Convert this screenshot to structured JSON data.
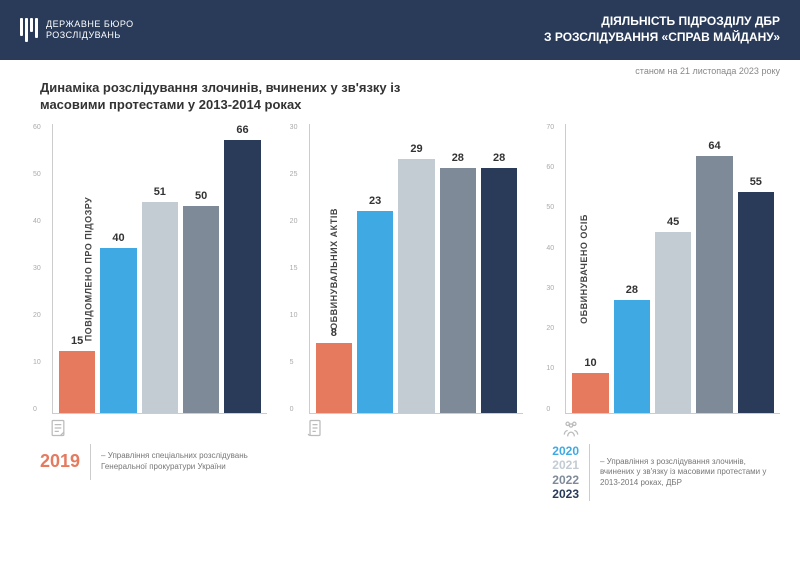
{
  "header": {
    "org_line1": "ДЕРЖАВНЕ БЮРО",
    "org_line2": "РОЗСЛІДУВАНЬ",
    "title_line1": "ДІЯЛЬНІСТЬ ПІДРОЗДІЛУ ДБР",
    "title_line2": "З РОЗСЛІДУВАННЯ «СПРАВ МАЙДАНУ»",
    "bg_color": "#2a3b5a"
  },
  "date_label": "станом на 21 листопада 2023 року",
  "main_title": "Динаміка розслідування злочинів, вчинених у зв'язку із масовими протестами у 2013-2014 роках",
  "colors": {
    "y2019": "#e57a5f",
    "y2020": "#3fa9e4",
    "y2021": "#c3cbd3",
    "y2022": "#7f8a99",
    "y2023": "#2a3b5a"
  },
  "charts": [
    {
      "axis_label": "ПОВІДОМЛЕНО ПРО ПІДОЗРУ",
      "ymax": 70,
      "yticks": [
        "0",
        "10",
        "20",
        "30",
        "40",
        "50",
        "60"
      ],
      "bars": [
        {
          "v": 15,
          "c": "y2019"
        },
        {
          "v": 40,
          "c": "y2020"
        },
        {
          "v": 51,
          "c": "y2021"
        },
        {
          "v": 50,
          "c": "y2022"
        },
        {
          "v": 66,
          "c": "y2023"
        }
      ],
      "icon": "doc"
    },
    {
      "axis_label": "ОБВИНУВАЛЬНИХ АКТІВ",
      "ymax": 33,
      "yticks": [
        "0",
        "5",
        "10",
        "15",
        "20",
        "25",
        "30"
      ],
      "bars": [
        {
          "v": 8,
          "c": "y2019"
        },
        {
          "v": 23,
          "c": "y2020"
        },
        {
          "v": 29,
          "c": "y2021"
        },
        {
          "v": 28,
          "c": "y2022"
        },
        {
          "v": 28,
          "c": "y2023"
        }
      ],
      "icon": "scroll"
    },
    {
      "axis_label": "ОБВИНУВАЧЕНО ОСІБ",
      "ymax": 72,
      "yticks": [
        "0",
        "10",
        "20",
        "30",
        "40",
        "50",
        "60",
        "70"
      ],
      "bars": [
        {
          "v": 10,
          "c": "y2019"
        },
        {
          "v": 28,
          "c": "y2020"
        },
        {
          "v": 45,
          "c": "y2021"
        },
        {
          "v": 64,
          "c": "y2022"
        },
        {
          "v": 55,
          "c": "y2023"
        }
      ],
      "icon": "people"
    }
  ],
  "legend": {
    "left_year": "2019",
    "left_text": "– Управління спеціальних розслідувань Генеральної прокуратури України",
    "right_years": [
      {
        "label": "2020",
        "color": "#3fa9e4"
      },
      {
        "label": "2021",
        "color": "#c3cbd3"
      },
      {
        "label": "2022",
        "color": "#7f8a99"
      },
      {
        "label": "2023",
        "color": "#2a3b5a"
      }
    ],
    "right_text": "– Управління з розслідування злочинів, вчинених у зв'язку із масовими протестами у 2013-2014 роках, ДБР"
  }
}
